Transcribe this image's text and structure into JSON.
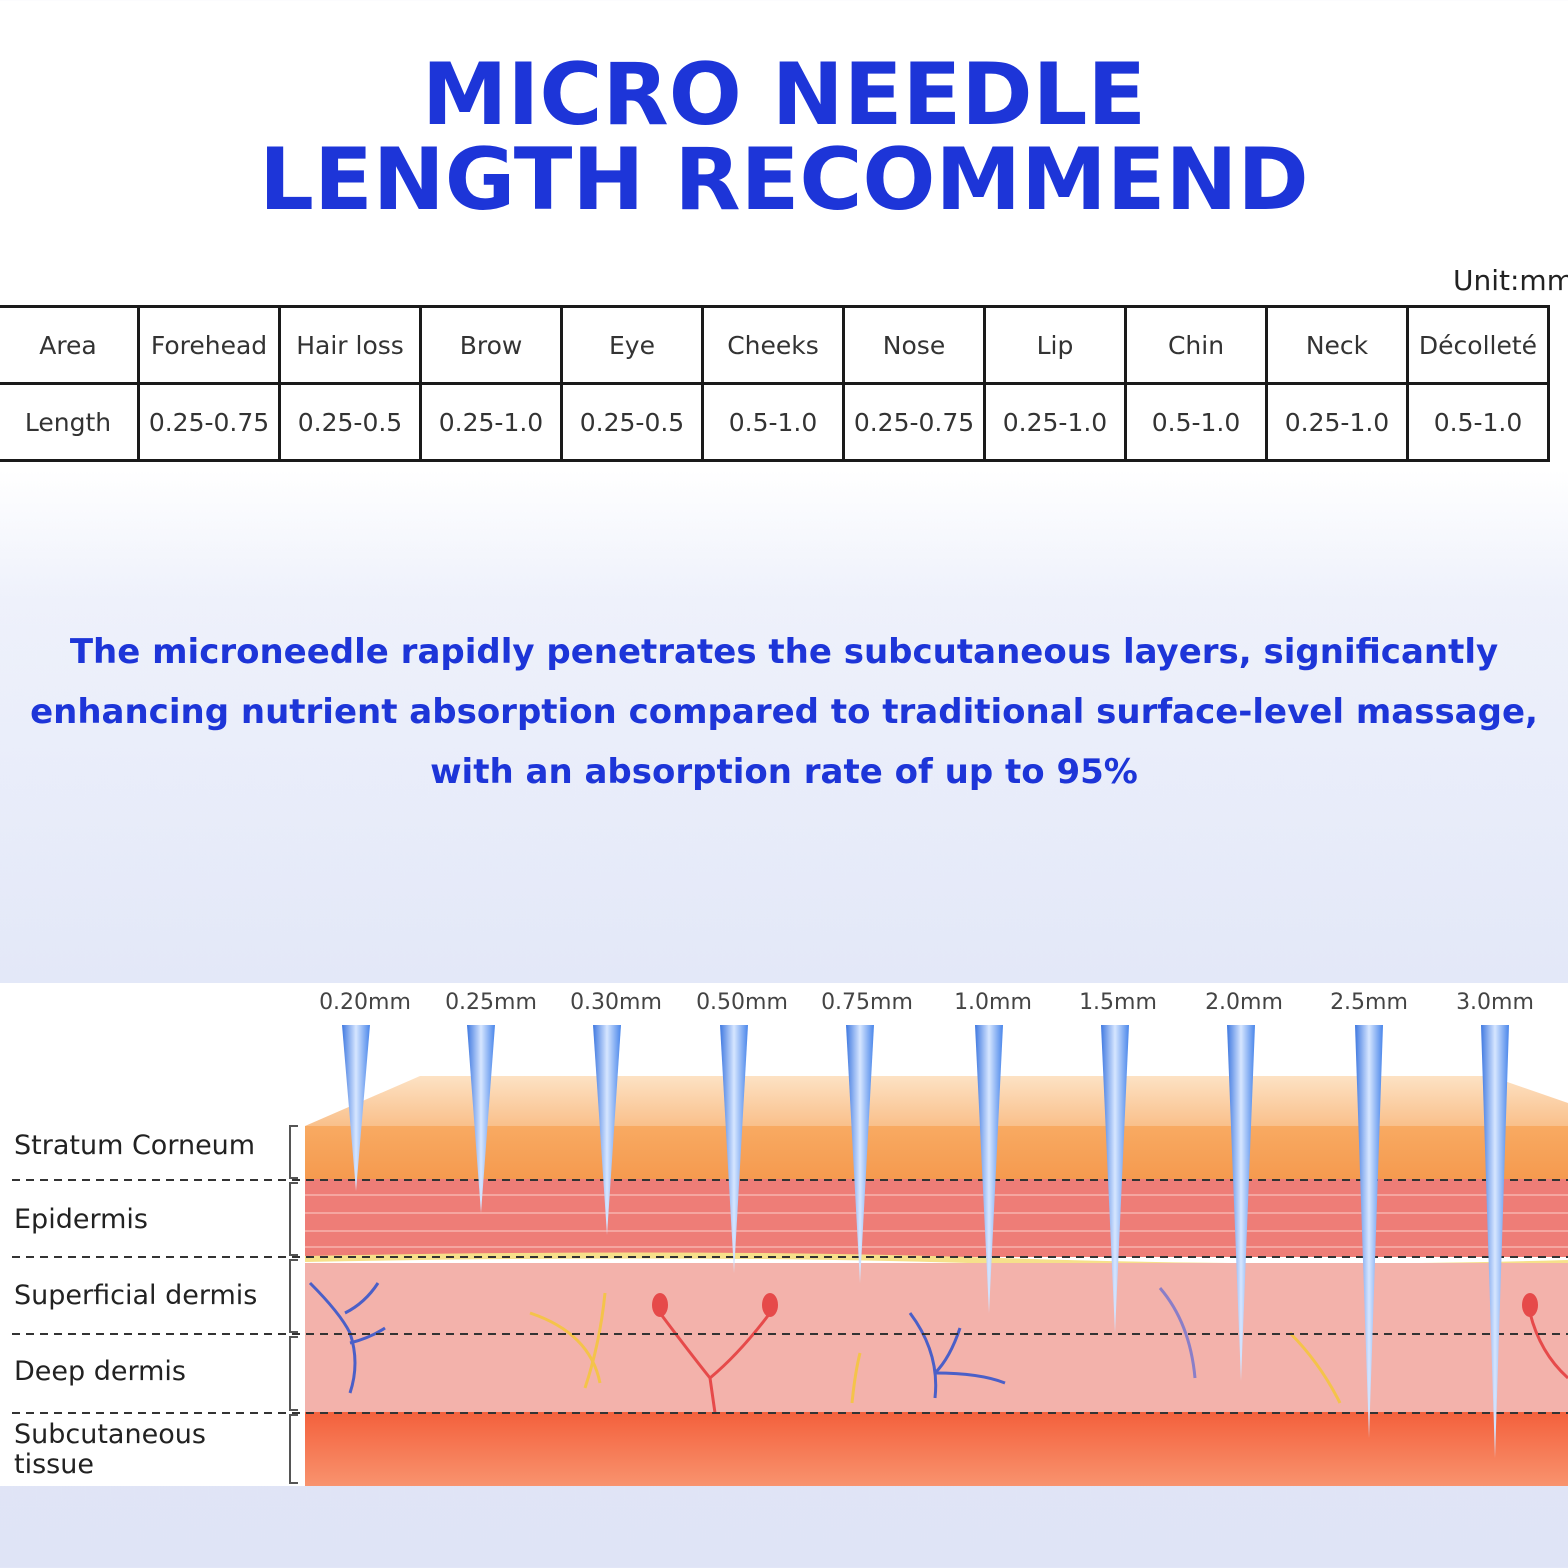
{
  "title": {
    "line1": "MICRO NEEDLE",
    "line2": "LENGTH RECOMMEND"
  },
  "unit_label": "Unit:mm",
  "table": {
    "header": [
      "Area",
      "Forehead",
      "Hair loss",
      "Brow",
      "Eye",
      "Cheeks",
      "Nose",
      "Lip",
      "Chin",
      "Neck",
      "Décolleté"
    ],
    "row": [
      "Length",
      "0.25-0.75",
      "0.25-0.5",
      "0.25-1.0",
      "0.25-0.5",
      "0.5-1.0",
      "0.25-0.75",
      "0.25-1.0",
      "0.5-1.0",
      "0.25-1.0",
      "0.5-1.0"
    ]
  },
  "description": "The microneedle rapidly penetrates the subcutaneous layers, significantly enhancing nutrient absorption compared to traditional surface-level massage, with an absorption rate of up to 95%",
  "needles": [
    "0.20mm",
    "0.25mm",
    "0.30mm",
    "0.50mm",
    "0.75mm",
    "1.0mm",
    "1.5mm",
    "2.0mm",
    "2.5mm",
    "3.0mm"
  ],
  "layers": [
    "Stratum Corneum",
    "Epidermis",
    "Superficial dermis",
    "Deep dermis",
    "Subcutaneous\ntissue"
  ],
  "colors": {
    "title_blue": "#1d35d8",
    "stratum": "#f7a25a",
    "epidermis": "#ef7f7a",
    "dermis": "#f3b2ab",
    "subcutaneous": "#f7714c",
    "needle": "#6f9ef0"
  }
}
